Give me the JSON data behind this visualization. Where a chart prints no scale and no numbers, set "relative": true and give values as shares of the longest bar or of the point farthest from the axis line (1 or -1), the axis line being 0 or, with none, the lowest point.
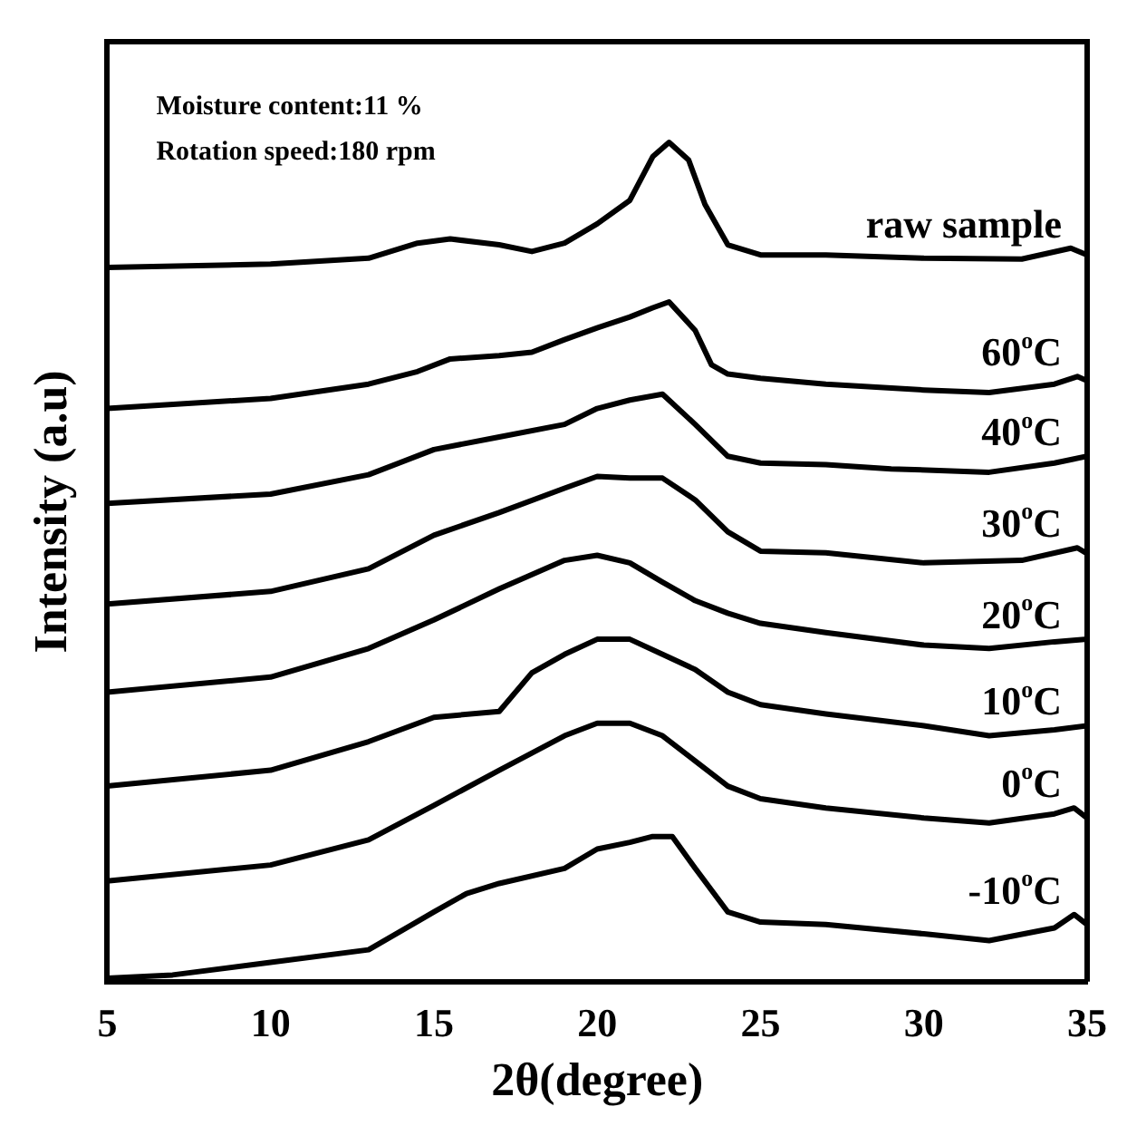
{
  "chart_data": {
    "type": "line",
    "relative": true,
    "xlabel": "2θ(degree)",
    "ylabel": "Intensity (a.u)",
    "xlim": [
      5,
      35
    ],
    "xticks": [
      5,
      10,
      15,
      20,
      25,
      30,
      35
    ],
    "legend": false,
    "grid": false,
    "marker": "none",
    "annotations": [
      "Moisture content:11 %",
      "Rotation speed:180 rpm"
    ],
    "series": [
      {
        "name": "raw sample",
        "color": "#000000",
        "x": [
          5,
          10,
          13,
          14.5,
          15.5,
          17,
          18,
          19,
          20,
          21,
          21.7,
          22.2,
          22.8,
          23.3,
          24,
          25,
          27,
          30,
          33,
          34.5,
          35
        ],
        "values": [
          0.851,
          0.855,
          0.862,
          0.88,
          0.885,
          0.878,
          0.87,
          0.88,
          0.903,
          0.931,
          0.983,
          1.0,
          0.979,
          0.926,
          0.878,
          0.866,
          0.866,
          0.862,
          0.861,
          0.874,
          0.866
        ]
      },
      {
        "name": "60$^{o}$C",
        "color": "#000000",
        "x": [
          5,
          10,
          13,
          14.5,
          15.5,
          17,
          18,
          19,
          20,
          21,
          21.7,
          22.2,
          23,
          23.5,
          24,
          25,
          27,
          30,
          32,
          34,
          34.7,
          35
        ],
        "values": [
          0.683,
          0.695,
          0.712,
          0.727,
          0.742,
          0.746,
          0.75,
          0.765,
          0.779,
          0.792,
          0.803,
          0.81,
          0.776,
          0.735,
          0.724,
          0.719,
          0.712,
          0.705,
          0.702,
          0.712,
          0.721,
          0.716
        ]
      },
      {
        "name": "40$^{o}$C",
        "color": "#000000",
        "x": [
          5,
          10,
          13,
          15,
          17,
          19,
          20,
          21,
          22,
          23,
          24,
          25,
          27,
          29,
          32,
          34,
          35
        ],
        "values": [
          0.57,
          0.581,
          0.604,
          0.634,
          0.649,
          0.664,
          0.683,
          0.693,
          0.7,
          0.664,
          0.626,
          0.618,
          0.616,
          0.611,
          0.607,
          0.618,
          0.626
        ]
      },
      {
        "name": "30$^{o}$C",
        "color": "#000000",
        "x": [
          5,
          10,
          13,
          15,
          17,
          19,
          20,
          21,
          22,
          23,
          24,
          25,
          27,
          30,
          33,
          34.7,
          35
        ],
        "values": [
          0.45,
          0.465,
          0.492,
          0.532,
          0.559,
          0.588,
          0.602,
          0.6,
          0.6,
          0.574,
          0.536,
          0.513,
          0.511,
          0.499,
          0.502,
          0.517,
          0.51
        ]
      },
      {
        "name": "20$^{o}$C",
        "color": "#000000",
        "x": [
          5,
          10,
          13,
          15,
          17,
          19,
          20,
          21,
          22,
          23,
          24,
          25,
          27,
          30,
          32,
          34,
          35
        ],
        "values": [
          0.345,
          0.363,
          0.397,
          0.431,
          0.468,
          0.502,
          0.508,
          0.499,
          0.476,
          0.454,
          0.439,
          0.427,
          0.416,
          0.401,
          0.397,
          0.405,
          0.408
        ]
      },
      {
        "name": "10$^{o}$C",
        "color": "#000000",
        "x": [
          5,
          10,
          13,
          15,
          17,
          18,
          19,
          20,
          21,
          22,
          23,
          24,
          25,
          27,
          30,
          32,
          34,
          35
        ],
        "values": [
          0.233,
          0.252,
          0.286,
          0.315,
          0.322,
          0.368,
          0.39,
          0.408,
          0.408,
          0.39,
          0.372,
          0.345,
          0.33,
          0.319,
          0.305,
          0.293,
          0.3,
          0.305
        ]
      },
      {
        "name": "0$^{o}$C",
        "color": "#000000",
        "x": [
          5,
          10,
          13,
          15,
          17,
          19,
          20,
          21,
          22,
          23,
          24,
          25,
          27,
          30,
          32,
          34,
          34.6,
          35
        ],
        "values": [
          0.12,
          0.139,
          0.169,
          0.21,
          0.252,
          0.293,
          0.308,
          0.308,
          0.293,
          0.263,
          0.233,
          0.218,
          0.207,
          0.195,
          0.189,
          0.2,
          0.207,
          0.195
        ]
      },
      {
        "name": "-10$^{o}$C",
        "color": "#000000",
        "x": [
          5,
          7,
          10,
          13,
          15,
          16,
          17,
          19,
          20,
          21,
          21.7,
          22.3,
          23,
          24,
          25,
          27,
          30,
          32,
          34,
          34.6,
          35
        ],
        "values": [
          0.004,
          0.008,
          0.023,
          0.038,
          0.083,
          0.105,
          0.117,
          0.135,
          0.158,
          0.166,
          0.173,
          0.173,
          0.135,
          0.083,
          0.071,
          0.068,
          0.057,
          0.049,
          0.064,
          0.08,
          0.068
        ]
      }
    ]
  }
}
